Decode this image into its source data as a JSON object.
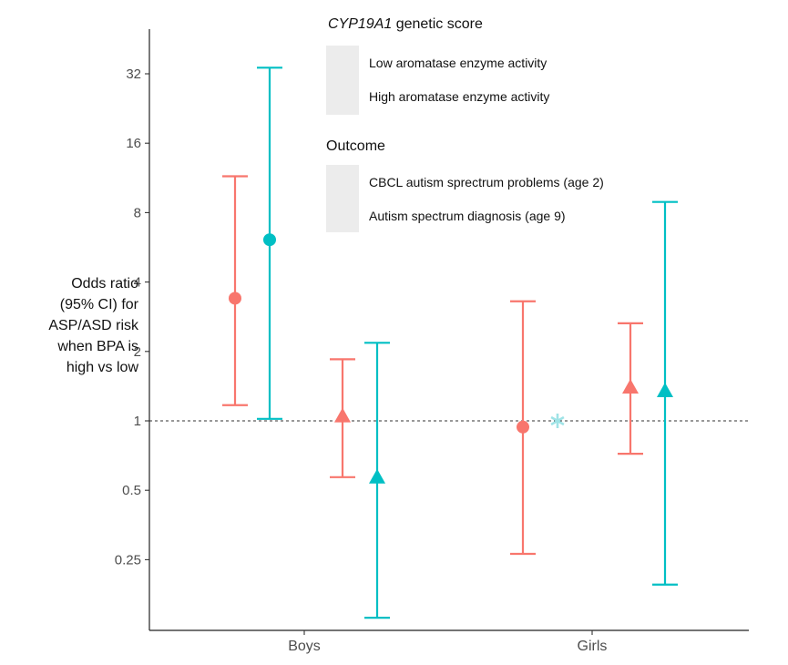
{
  "chart_data": {
    "type": "scatter",
    "subtype": "point-range with error bars, log2 y-axis",
    "ylabel_lines": [
      "Odds ratio",
      "(95% CI) for",
      "ASP/ASD risk",
      "when BPA is",
      "high vs low"
    ],
    "y_ticks": [
      0.25,
      0.5,
      1,
      2,
      4,
      8,
      16,
      32
    ],
    "y_tick_labels": [
      "0.25",
      "0.5",
      "1",
      "2",
      "4",
      "8",
      "16",
      "32"
    ],
    "y_scale": "log2",
    "ylim": [
      0.16,
      42
    ],
    "categories": [
      "Boys",
      "Girls"
    ],
    "reference_line": 1,
    "legend_shape": {
      "title_italic": "CYP19A1",
      "title_rest": " genetic score",
      "items": [
        {
          "label": "Low aromatase enzyme activity",
          "shape": "circle"
        },
        {
          "label": "High aromatase enzyme activity",
          "shape": "triangle"
        }
      ]
    },
    "legend_outcome": {
      "title": "Outcome",
      "items": [
        {
          "label": "CBCL autism sprectrum problems (age 2)",
          "color": "#F8766D"
        },
        {
          "label": "Autism spectrum diagnosis (age 9)",
          "color": "#00BFC4"
        }
      ]
    },
    "series": [
      {
        "group": "Boys",
        "score": "Low aromatase enzyme activity",
        "outcome": "CBCL autism sprectrum problems (age 2)",
        "shape": "circle",
        "color": "#F8766D",
        "or": 3.4,
        "lo": 1.17,
        "hi": 11.5
      },
      {
        "group": "Boys",
        "score": "Low aromatase enzyme activity",
        "outcome": "Autism spectrum diagnosis (age 9)",
        "shape": "circle",
        "color": "#00BFC4",
        "or": 6.1,
        "lo": 1.02,
        "hi": 34.0
      },
      {
        "group": "Boys",
        "score": "High aromatase enzyme activity",
        "outcome": "CBCL autism sprectrum problems (age 2)",
        "shape": "triangle",
        "color": "#F8766D",
        "or": 1.05,
        "lo": 0.57,
        "hi": 1.85
      },
      {
        "group": "Boys",
        "score": "High aromatase enzyme activity",
        "outcome": "Autism spectrum diagnosis (age 9)",
        "shape": "triangle",
        "color": "#00BFC4",
        "or": 0.57,
        "lo": 0.14,
        "hi": 2.18
      },
      {
        "group": "Girls",
        "score": "Low aromatase enzyme activity",
        "outcome": "CBCL autism sprectrum problems (age 2)",
        "shape": "circle",
        "color": "#F8766D",
        "or": 0.94,
        "lo": 0.265,
        "hi": 3.3
      },
      {
        "group": "Girls",
        "score": "Low aromatase enzyme activity",
        "outcome": "Autism spectrum diagnosis (age 9)",
        "shape": "asterisk",
        "color": "#9FE3E6",
        "or": 1.0,
        "lo": null,
        "hi": null
      },
      {
        "group": "Girls",
        "score": "High aromatase enzyme activity",
        "outcome": "CBCL autism sprectrum problems (age 2)",
        "shape": "triangle",
        "color": "#F8766D",
        "or": 1.4,
        "lo": 0.72,
        "hi": 2.65
      },
      {
        "group": "Girls",
        "score": "High aromatase enzyme activity",
        "outcome": "Autism spectrum diagnosis (age 9)",
        "shape": "triangle",
        "color": "#00BFC4",
        "or": 1.35,
        "lo": 0.195,
        "hi": 8.9
      }
    ]
  }
}
